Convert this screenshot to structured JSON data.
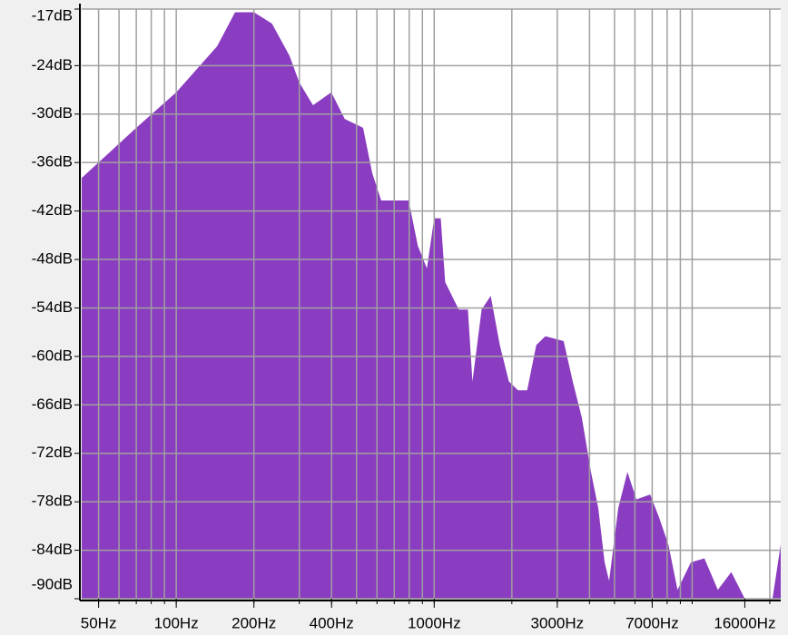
{
  "chart_data": {
    "type": "area",
    "color": "#8a3dc0",
    "xscale": "log",
    "grid": true,
    "x": [
      43,
      70,
      100,
      144,
      169,
      200,
      235,
      275,
      300,
      339,
      399,
      450,
      530,
      575,
      623,
      796,
      864,
      937,
      1000,
      1060,
      1103,
      1245,
      1351,
      1407,
      1527,
      1656,
      1796,
      1948,
      2113,
      2293,
      2487,
      2698,
      3175,
      3444,
      3736,
      4053,
      4326,
      4578,
      4766,
      5170,
      5609,
      6084,
      6874,
      7456,
      8089,
      8775,
      9891,
      11154,
      12576,
      14179,
      16000,
      20484,
      22050
    ],
    "values": [
      -37.9,
      -31.7,
      -27.3,
      -21.6,
      -17.4,
      -17.4,
      -18.8,
      -22.8,
      -26.1,
      -28.9,
      -27.3,
      -30.6,
      -31.7,
      -37.3,
      -40.7,
      -40.7,
      -46.3,
      -49.1,
      -42.9,
      -42.9,
      -50.8,
      -54.2,
      -54.2,
      -63.1,
      -54.2,
      -52.5,
      -58.6,
      -63.1,
      -64.2,
      -64.2,
      -58.6,
      -57.5,
      -58.1,
      -63.1,
      -67.6,
      -74.3,
      -78.8,
      -85.5,
      -87.8,
      -78.8,
      -74.3,
      -77.7,
      -77.1,
      -80.0,
      -83.3,
      -88.9,
      -85.5,
      -85.0,
      -88.9,
      -86.7,
      -90,
      -90,
      -83.3
    ],
    "xlim": [
      43,
      22050
    ],
    "ylim": [
      -90,
      -17
    ],
    "xticks": [
      {
        "value": 50,
        "label": "50Hz"
      },
      {
        "value": 100,
        "label": "100Hz"
      },
      {
        "value": 200,
        "label": "200Hz"
      },
      {
        "value": 400,
        "label": "400Hz"
      },
      {
        "value": 1000,
        "label": "1000Hz"
      },
      {
        "value": 3000,
        "label": "3000Hz"
      },
      {
        "value": 7000,
        "label": "7000Hz"
      },
      {
        "value": 16000,
        "label": "16000Hz"
      }
    ],
    "xgrid": [
      50,
      60,
      70,
      80,
      90,
      100,
      200,
      300,
      400,
      500,
      600,
      700,
      800,
      900,
      1000,
      2000,
      3000,
      4000,
      5000,
      6000,
      7000,
      8000,
      9000,
      10000,
      20000
    ],
    "yticks": [
      {
        "value": -17,
        "label": "-17dB"
      },
      {
        "value": -24,
        "label": "-24dB"
      },
      {
        "value": -30,
        "label": "-30dB"
      },
      {
        "value": -36,
        "label": "-36dB"
      },
      {
        "value": -42,
        "label": "-42dB"
      },
      {
        "value": -48,
        "label": "-48dB"
      },
      {
        "value": -54,
        "label": "-54dB"
      },
      {
        "value": -60,
        "label": "-60dB"
      },
      {
        "value": -66,
        "label": "-66dB"
      },
      {
        "value": -72,
        "label": "-72dB"
      },
      {
        "value": -78,
        "label": "-78dB"
      },
      {
        "value": -84,
        "label": "-84dB"
      },
      {
        "value": -90,
        "label": "-90dB"
      }
    ]
  }
}
